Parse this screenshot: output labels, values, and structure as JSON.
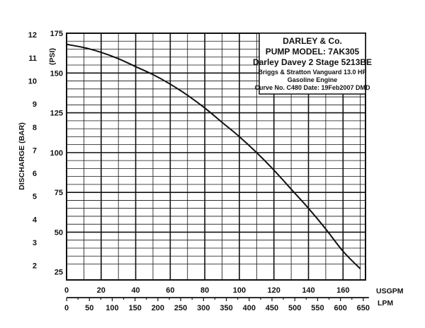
{
  "chart_data": {
    "type": "line",
    "title_box": {
      "lines": [
        "DARLEY & Co.",
        "PUMP MODEL: 7AK305",
        "Darley Davey 2 Stage 5213BE",
        "Briggs & Stratton Vanguard 13.0 HP",
        "Gasoline Engine",
        "Curve No. C480 Date: 19Feb2007 DMD"
      ]
    },
    "y_left": {
      "label": "DISCHARGE (BAR)",
      "ticks": [
        "12",
        "11",
        "10",
        "9",
        "8",
        "7",
        "6",
        "5",
        "4",
        "3",
        "2"
      ],
      "tick_values": [
        12,
        11,
        10,
        9,
        8,
        7,
        6,
        5,
        4,
        3,
        2
      ]
    },
    "y_right": {
      "label": "(PSI)",
      "ticks": [
        "175",
        "150",
        "125",
        "100",
        "75",
        "50",
        "25"
      ],
      "tick_values": [
        175,
        150,
        125,
        100,
        75,
        50,
        25
      ],
      "ylim": [
        20,
        175
      ]
    },
    "x_primary": {
      "label": "USGPM",
      "ticks": [
        "0",
        "20",
        "40",
        "60",
        "80",
        "100",
        "120",
        "140",
        "160"
      ],
      "tick_values": [
        0,
        20,
        40,
        60,
        80,
        100,
        120,
        140,
        160
      ],
      "xlim": [
        0,
        173
      ]
    },
    "x_secondary": {
      "label": "LPM",
      "ticks": [
        "0",
        "50",
        "100",
        "150",
        "200",
        "250",
        "300",
        "350",
        "400",
        "450",
        "500",
        "550",
        "600",
        "650"
      ],
      "tick_values": [
        0,
        50,
        100,
        150,
        200,
        250,
        300,
        350,
        400,
        450,
        500,
        550,
        600,
        650
      ]
    },
    "grid": true,
    "series": [
      {
        "x": [
          0,
          10,
          20,
          30,
          40,
          50,
          60,
          70,
          80,
          90,
          100,
          110,
          120,
          130,
          140,
          150,
          160,
          170
        ],
        "y": [
          168,
          166,
          163,
          159,
          154,
          149,
          143,
          136,
          128,
          119,
          110,
          100,
          89,
          77,
          65,
          52,
          38,
          27
        ]
      }
    ]
  }
}
